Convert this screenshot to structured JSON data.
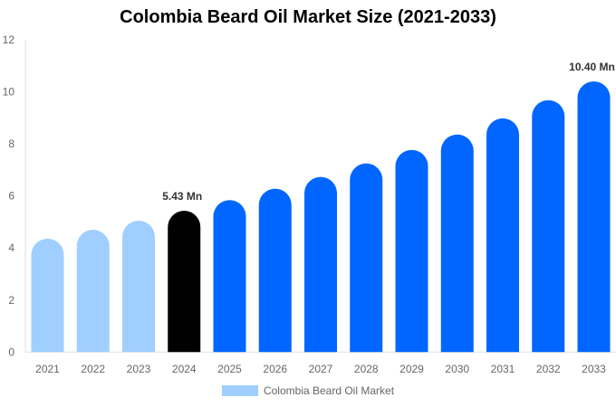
{
  "chart_data": {
    "type": "bar",
    "title": "Colombia Beard Oil Market Size (2021-2033)",
    "categories": [
      "2021",
      "2022",
      "2023",
      "2024",
      "2025",
      "2026",
      "2027",
      "2028",
      "2029",
      "2030",
      "2031",
      "2032",
      "2033"
    ],
    "series": [
      {
        "name": "Colombia Beard Oil Market",
        "values": [
          4.36,
          4.7,
          5.05,
          5.43,
          5.84,
          6.28,
          6.73,
          7.25,
          7.77,
          8.36,
          8.98,
          9.68,
          10.4
        ]
      }
    ],
    "data_labels": {
      "2024": "5.43 Mn",
      "2033": "10.40 Mn"
    },
    "ylim": [
      0,
      12
    ],
    "yticks": [
      0,
      2,
      4,
      6,
      8,
      10,
      12
    ],
    "xlabel": "",
    "ylabel": "",
    "grid": false,
    "legend": "bottom",
    "colors": {
      "historical": "#a0cfff",
      "base_year": "#000000",
      "forecast": "#0066ff"
    }
  }
}
